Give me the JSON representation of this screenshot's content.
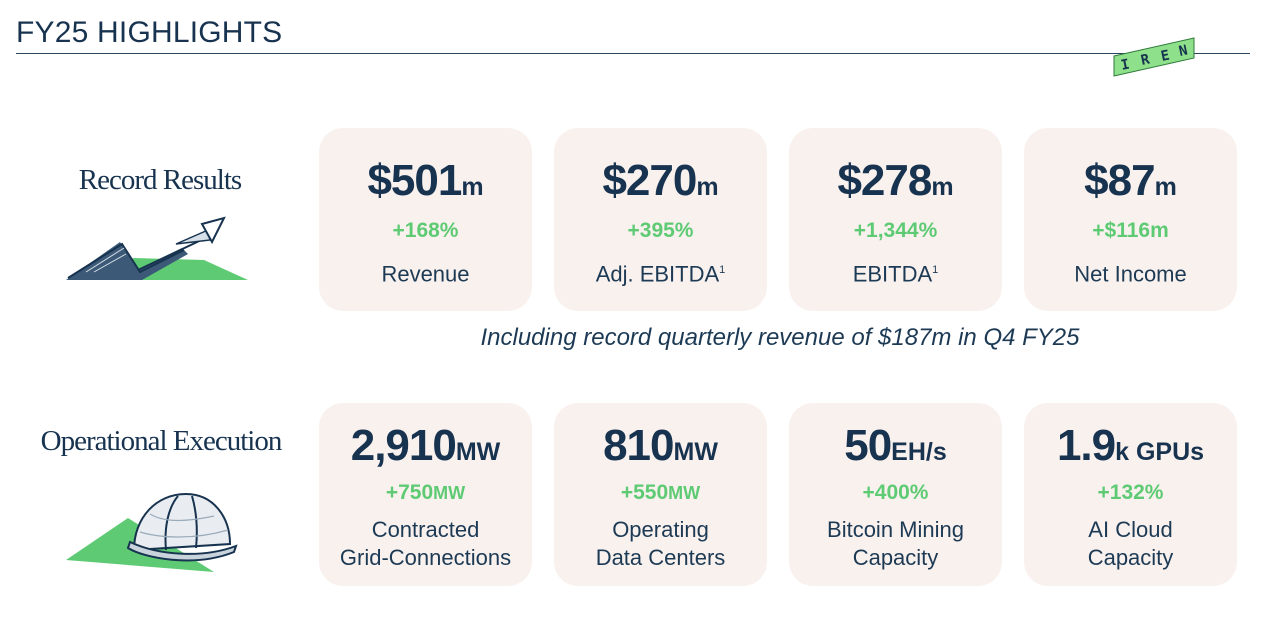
{
  "page": {
    "title": "FY25 HIGHLIGHTS"
  },
  "logo": {
    "text": "IREN",
    "letters": [
      "I",
      "R",
      "E",
      "N"
    ]
  },
  "colors": {
    "navy": "#17334f",
    "green": "#5ecb74",
    "card_bg": "#f9f1ee",
    "logo_green": "#8ee08a"
  },
  "record": {
    "label": "Record Results",
    "icon": "rising-arrow-icon",
    "cards": [
      {
        "value": "$501",
        "unit": "m",
        "change": "+168%",
        "label": "Revenue",
        "note": ""
      },
      {
        "value": "$270",
        "unit": "m",
        "change": "+395%",
        "label": "Adj. EBITDA",
        "note": "1"
      },
      {
        "value": "$278",
        "unit": "m",
        "change": "+1,344%",
        "label": "EBITDA",
        "note": "1"
      },
      {
        "value": "$87",
        "unit": "m",
        "change": "+$116m",
        "label": "Net Income",
        "note": ""
      }
    ],
    "footnote_text": "Including record quarterly revenue of $187m in Q4 FY25"
  },
  "operational": {
    "label": "Operational Execution",
    "icon": "hard-hat-icon",
    "cards": [
      {
        "value": "2,910",
        "unit": "MW",
        "change_value": "+750",
        "change_unit": "MW",
        "label_line1": "Contracted",
        "label_line2": "Grid-Connections"
      },
      {
        "value": "810",
        "unit": "MW",
        "change_value": "+550",
        "change_unit": "MW",
        "label_line1": "Operating",
        "label_line2": "Data Centers"
      },
      {
        "value": "50",
        "unit": "EH/s",
        "change_value": "+400%",
        "change_unit": "",
        "label_line1": "Bitcoin Mining",
        "label_line2": "Capacity"
      },
      {
        "value": "1.9",
        "unit": "k GPUs",
        "change_value": "+132%",
        "change_unit": "",
        "label_line1": "AI Cloud",
        "label_line2": "Capacity"
      }
    ]
  }
}
